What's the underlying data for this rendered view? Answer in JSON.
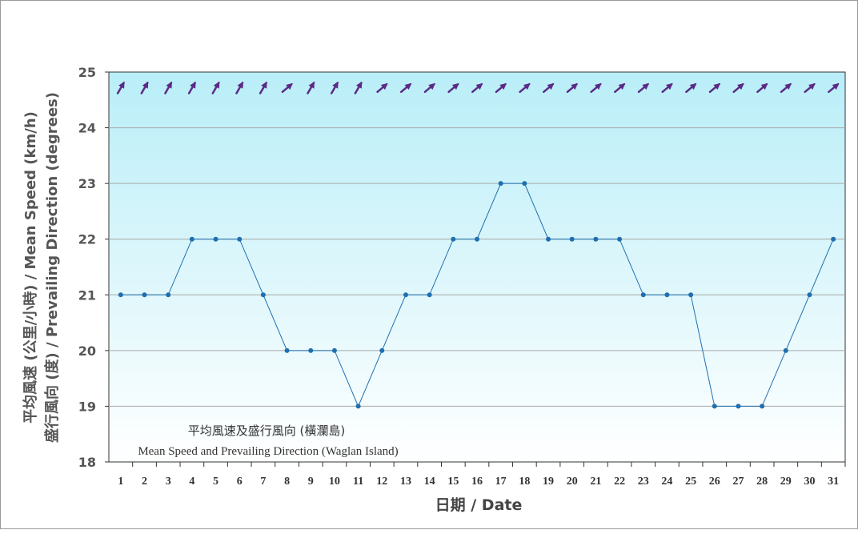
{
  "chart_data": {
    "type": "line",
    "title": "平均風速及盛行風向 (橫瀾島)",
    "subtitle": "Mean Speed and Prevailing Direction (Waglan Island)",
    "xlabel": "日期 / Date",
    "ylabel_line1": "平均風速 (公里/小時) / Mean Speed (km/h)",
    "ylabel_line2": "盛行風向 (度) / Prevailing Direction (degrees)",
    "ylim": [
      18,
      25
    ],
    "yticks": [
      18,
      19,
      20,
      21,
      22,
      23,
      24,
      25
    ],
    "x": [
      1,
      2,
      3,
      4,
      5,
      6,
      7,
      8,
      9,
      10,
      11,
      12,
      13,
      14,
      15,
      16,
      17,
      18,
      19,
      20,
      21,
      22,
      23,
      24,
      25,
      26,
      27,
      28,
      29,
      30,
      31
    ],
    "series": [
      {
        "name": "Mean Speed (km/h)",
        "color": "#1f6fb0",
        "values": [
          21,
          21,
          21,
          22,
          22,
          22,
          21,
          20,
          20,
          20,
          19,
          20,
          21,
          21,
          22,
          22,
          23,
          23,
          22,
          22,
          22,
          22,
          21,
          21,
          21,
          19,
          19,
          19,
          20,
          21,
          22
        ]
      },
      {
        "name": "Prevailing Direction (degrees)",
        "color": "#5b2a86",
        "values": [
          210,
          210,
          210,
          210,
          210,
          210,
          210,
          230,
          210,
          210,
          210,
          230,
          230,
          230,
          230,
          230,
          230,
          230,
          230,
          230,
          230,
          230,
          230,
          230,
          230,
          230,
          230,
          230,
          230,
          230,
          230
        ]
      }
    ],
    "grid": true,
    "background_gradient": [
      "#b9eef8",
      "#ffffff"
    ]
  }
}
